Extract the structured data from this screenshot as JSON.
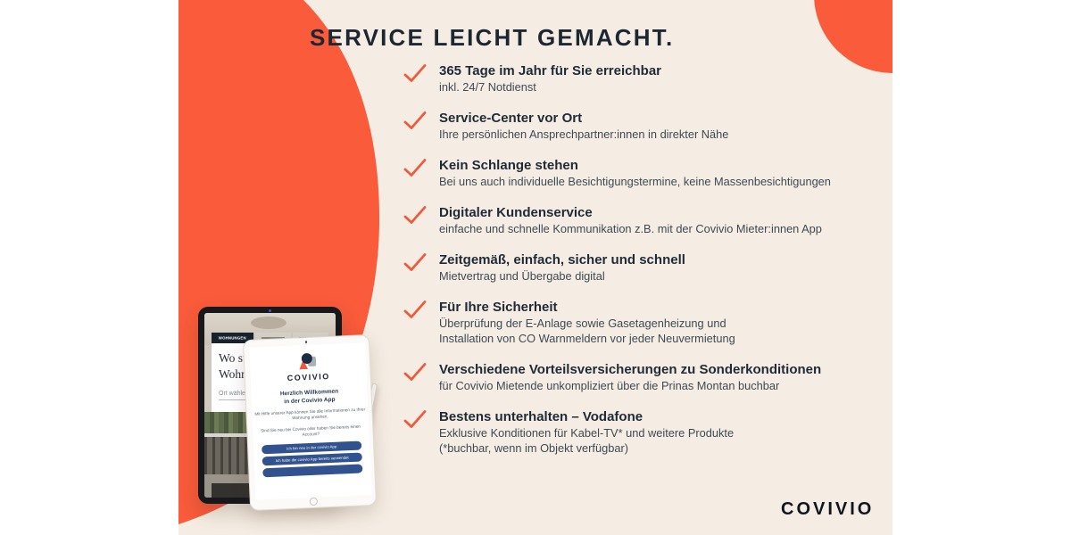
{
  "title": "SERVICE LEICHT GEMACHT.",
  "colors": {
    "background_cream": "#F5EDE3",
    "accent_orange": "#F95B3B",
    "checkmark_orange": "#EF5A3C",
    "text_navy": "#1F2A37",
    "app_button_blue": "#31528F"
  },
  "services": [
    {
      "heading": "365 Tage im Jahr für Sie erreichbar",
      "details": [
        "inkl. 24/7 Notdienst"
      ]
    },
    {
      "heading": "Service-Center vor Ort",
      "details": [
        "Ihre persönlichen Ansprechpartner:innen in direkter Nähe"
      ]
    },
    {
      "heading": "Kein Schlange stehen",
      "details": [
        "Bei uns auch individuelle Besichtigungstermine, keine Massenbesichtigungen"
      ]
    },
    {
      "heading": "Digitaler Kundenservice",
      "details": [
        "einfache und schnelle Kommunikation z.B. mit der Covivio Mieter:innen App"
      ]
    },
    {
      "heading": "Zeitgemäß, einfach, sicher und schnell",
      "details": [
        "Mietvertrag und Übergabe digital"
      ]
    },
    {
      "heading": "Für Ihre Sicherheit",
      "details": [
        "Überprüfung der E-Anlage sowie Gasetagenheizung und",
        "Installation von CO Warnmeldern vor jeder Neuvermietung"
      ]
    },
    {
      "heading": "Verschiedene Vorteilsversicherungen zu Sonderkonditionen",
      "details": [
        "für Covivio Mietende unkompliziert über die Prinas Montan buchbar"
      ]
    },
    {
      "heading": "Bestens unterhalten – Vodafone",
      "details": [
        "Exklusive Konditionen für Kabel-TV* und weitere Produkte",
        "(*buchbar, wenn im Objekt verfügbar)"
      ]
    }
  ],
  "devices": {
    "tablet_website": {
      "active_tab": "WOHNUNGEN",
      "headline_line1": "Wo suche",
      "headline_line2": "Wohnung",
      "location_placeholder": "Ort wählen"
    },
    "tablet_app": {
      "brand": "COVIVIO",
      "welcome_line1": "Herzlich Willkommen",
      "welcome_line2": "in der Covivio App",
      "intro": "Mit Hilfe unserer App können Sie alle Informationen zu Ihrer Wohnung ansehen.",
      "question": "Sind Sie neu bei Covivio oder haben Sie bereits einen Account?",
      "buttons": [
        "Ich bin neu in der covivio App",
        "Ich habe die covivio App bereits verwendet",
        ""
      ]
    }
  },
  "footer": {
    "logo": "COVIVIO"
  }
}
